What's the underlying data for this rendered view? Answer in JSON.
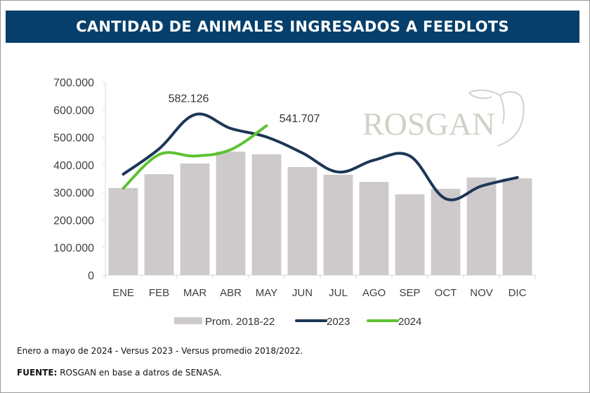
{
  "header": {
    "title": "CANTIDAD DE ANIMALES INGRESADOS A FEEDLOTS"
  },
  "watermark": {
    "text": "ROSGAN"
  },
  "footer": {
    "note": "Enero a mayo de 2024 - Versus 2023 - Versus promedio 2018/2022.",
    "source_label": "FUENTE:",
    "source_text": " ROSGAN en base a datros de SENASA."
  },
  "chart_data": {
    "type": "bar",
    "title": "CANTIDAD DE ANIMALES INGRESADOS A FEEDLOTS",
    "xlabel": "",
    "ylabel": "",
    "ylim": [
      0,
      700000
    ],
    "yticks": [
      0,
      100000,
      200000,
      300000,
      400000,
      500000,
      600000,
      700000
    ],
    "ytick_labels": [
      "0",
      "100.000",
      "200.000",
      "300.000",
      "400.000",
      "500.000",
      "600.000",
      "700.000"
    ],
    "categories": [
      "ENE",
      "FEB",
      "MAR",
      "ABR",
      "MAY",
      "JUN",
      "JUL",
      "AGO",
      "SEP",
      "OCT",
      "NOV",
      "DIC"
    ],
    "grid": false,
    "legend_position": "bottom",
    "series": [
      {
        "name": "Prom. 2018-22",
        "type": "bar",
        "color": "#cecacb",
        "values": [
          316000,
          366000,
          405000,
          448000,
          438000,
          392000,
          364000,
          338000,
          293000,
          313000,
          354000,
          351000
        ]
      },
      {
        "name": "2023",
        "type": "line",
        "color": "#1c3656",
        "values": [
          366000,
          458000,
          582126,
          532000,
          501000,
          443000,
          374000,
          417000,
          432000,
          277000,
          323000,
          354000
        ]
      },
      {
        "name": "2024",
        "type": "line",
        "color": "#5ec232",
        "values": [
          315000,
          437000,
          432000,
          455000,
          541707
        ]
      }
    ],
    "annotations": [
      {
        "series": "2023",
        "category": "MAR",
        "text": "582.126"
      },
      {
        "series": "2024",
        "category": "MAY",
        "text": "541.707"
      }
    ]
  }
}
